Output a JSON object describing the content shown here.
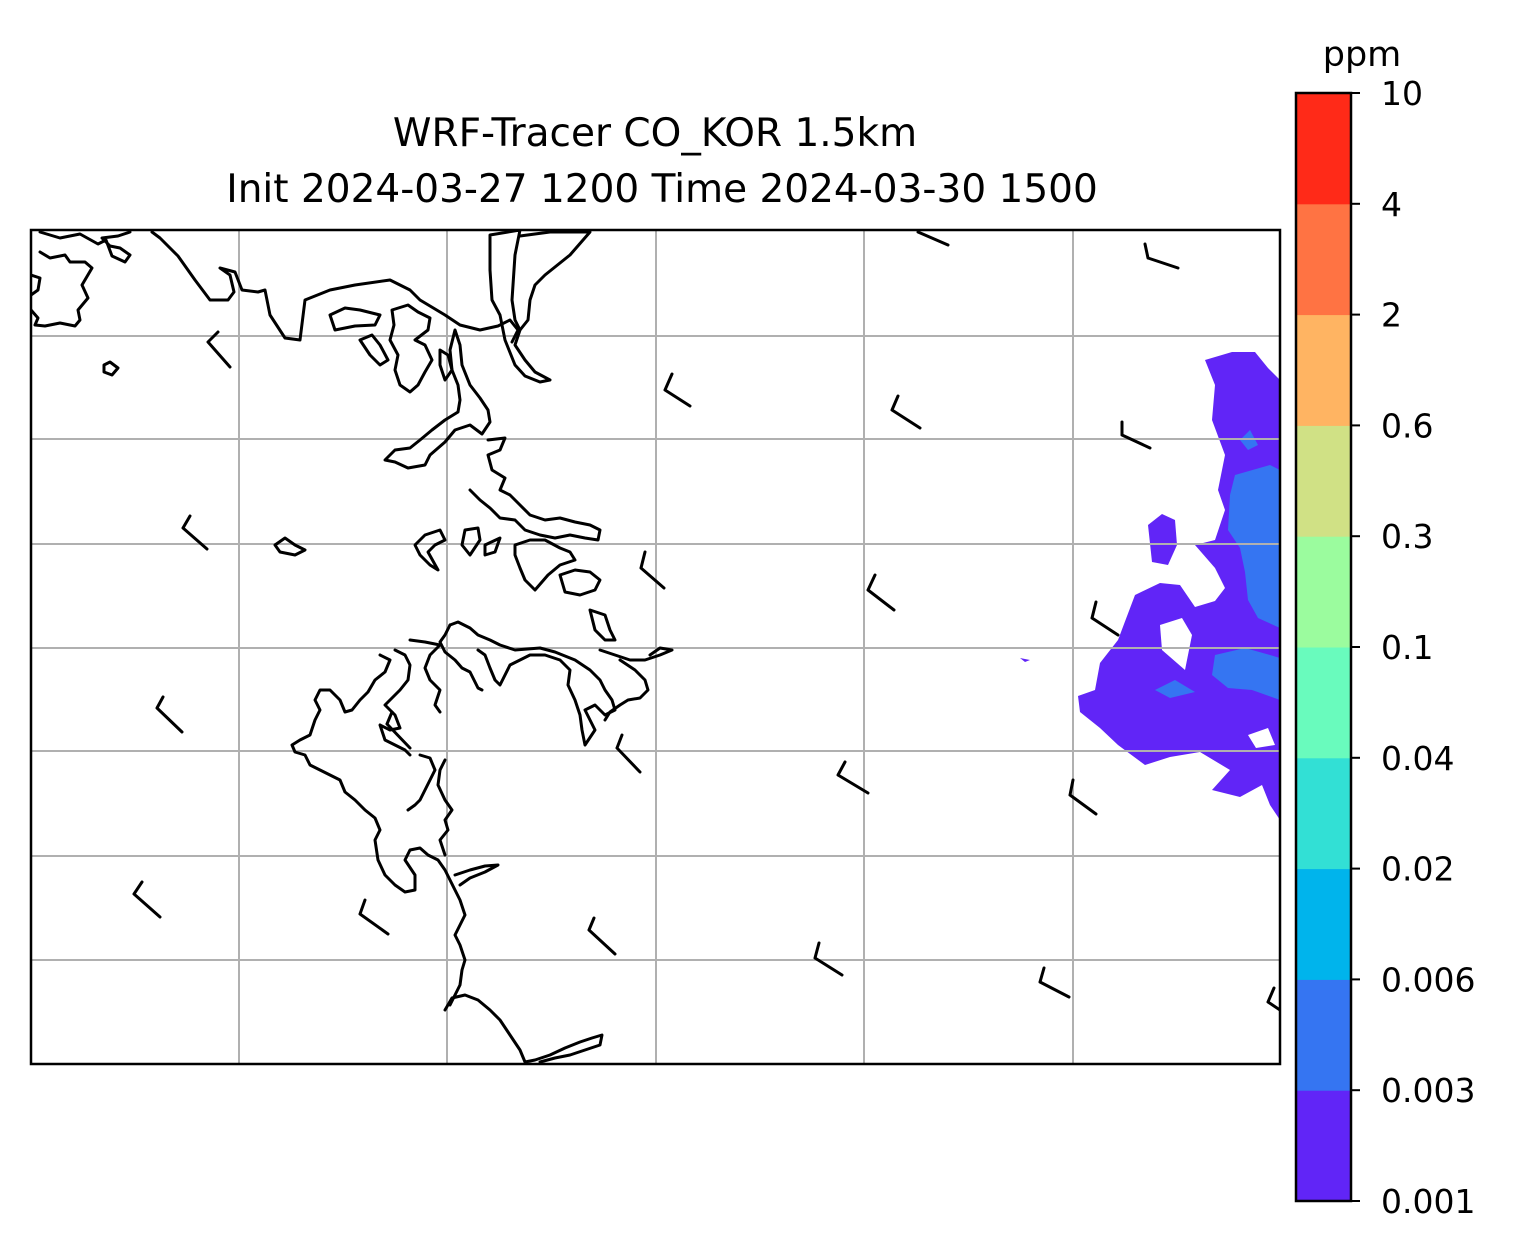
{
  "title_line1": "WRF-Tracer CO_KOR 1.5km",
  "title_line2": "Init 2024-03-27 1200 Time 2024-03-30 1500",
  "colorbar": {
    "unit": "ppm",
    "levels": [
      "0.001",
      "0.003",
      "0.006",
      "0.02",
      "0.04",
      "0.1",
      "0.3",
      "0.6",
      "2",
      "4",
      "10"
    ],
    "colors": [
      "#6125f7",
      "#3575f2",
      "#00b4ec",
      "#32e0d5",
      "#69fbbd",
      "#9bfc9e",
      "#d0e185",
      "#ffb462",
      "#ff7343",
      "#ff2a18"
    ]
  },
  "map": {
    "gridlines": true,
    "gridline_color": "#b0b0b0",
    "coastline_color": "#000000",
    "wind_barbs": true
  }
}
